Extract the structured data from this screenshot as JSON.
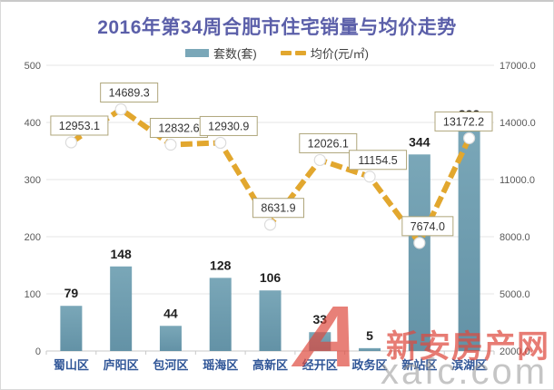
{
  "chart_data": {
    "type": "bar+line",
    "title": "2016年第34周合肥市住宅销量与均价走势",
    "categories": [
      "蜀山区",
      "庐阳区",
      "包河区",
      "瑶海区",
      "高新区",
      "经开区",
      "政务区",
      "新站区",
      "滨湖区"
    ],
    "series": [
      {
        "name": "套数(套)",
        "type": "bar",
        "axis": "left",
        "values": [
          79,
          148,
          44,
          128,
          106,
          33,
          5,
          344,
          392
        ]
      },
      {
        "name": "均价(元/㎡)",
        "type": "line",
        "axis": "right",
        "values": [
          12953.1,
          14689.3,
          12832.6,
          12930.9,
          8631.9,
          12026.1,
          11154.5,
          7674.0,
          13172.2
        ]
      }
    ],
    "left_axis": {
      "min": 0,
      "max": 500,
      "step": 100,
      "ticks": [
        "0",
        "100",
        "200",
        "300",
        "400",
        "500"
      ]
    },
    "right_axis": {
      "min": 2000,
      "max": 17000,
      "step": 3000,
      "ticks": [
        "2000.0",
        "5000.0",
        "8000.0",
        "11000.0",
        "14000.0",
        "17000.0"
      ]
    },
    "grid": true,
    "legend_position": "top"
  },
  "legend": [
    {
      "label": "套数(套)"
    },
    {
      "label": "均价(元/㎡)"
    }
  ],
  "colors": {
    "title": "#5b5fa9",
    "bar_top": "#7aa7b8",
    "bar_bottom": "#6392a6",
    "line": "#e2a72e",
    "marker_fill": "#ffffff",
    "marker_stroke": "#dcdcdc",
    "grid": "#e5e5e5",
    "axis_line": "#c9c9c9",
    "axis_text": "#595959",
    "bar_label": "#1f1f1f",
    "category_label": "#2f5597",
    "price_box_border": "#afa67b",
    "price_box_fill": "#ffffff",
    "price_text": "#333333",
    "watermark_red": "#de4a3e",
    "watermark_gray": "#969696"
  },
  "watermark": {
    "logo": "A",
    "brand": "新安房产网",
    "domain": "xafc.com"
  }
}
